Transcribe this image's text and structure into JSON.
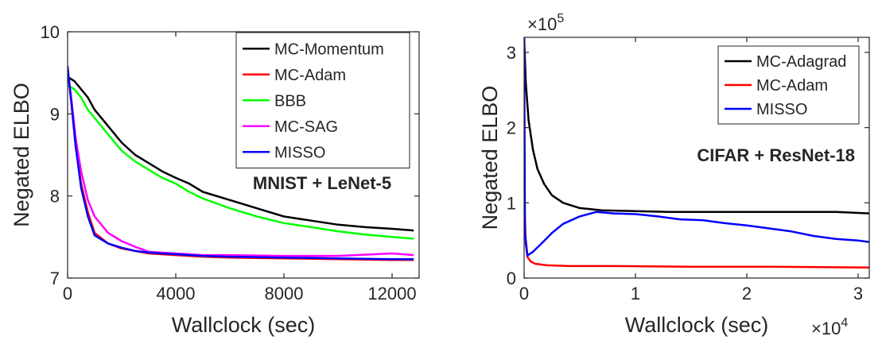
{
  "chart_data": [
    {
      "type": "line",
      "annotation": "MNIST + LeNet-5",
      "xlabel": "Wallclock (sec)",
      "ylabel": "Negated ELBO",
      "xlim": [
        0,
        13000
      ],
      "ylim": [
        7,
        10
      ],
      "xticks": [
        0,
        4000,
        8000,
        12000
      ],
      "xtick_labels": [
        "0",
        "4000",
        "8000",
        "12000"
      ],
      "yticks": [
        7,
        8,
        9,
        10
      ],
      "ytick_labels": [
        "7",
        "8",
        "9",
        "10"
      ],
      "grid": false,
      "legend_position": "top-right",
      "series": [
        {
          "name": "MC-Momentum",
          "color": "#000000",
          "x": [
            0,
            250,
            500,
            750,
            1000,
            1500,
            2000,
            2500,
            3000,
            3500,
            4000,
            4500,
            5000,
            6000,
            7000,
            8000,
            9000,
            10000,
            11000,
            12000,
            12800
          ],
          "y": [
            9.45,
            9.4,
            9.3,
            9.2,
            9.05,
            8.85,
            8.65,
            8.5,
            8.4,
            8.3,
            8.22,
            8.15,
            8.05,
            7.95,
            7.85,
            7.75,
            7.7,
            7.65,
            7.62,
            7.6,
            7.58
          ]
        },
        {
          "name": "MC-Adam",
          "color": "#ff0000",
          "x": [
            0,
            150,
            300,
            500,
            750,
            1000,
            1500,
            2000,
            2500,
            3000,
            4000,
            5000,
            6000,
            8000,
            10000,
            12000,
            12800
          ],
          "y": [
            9.55,
            9.1,
            8.6,
            8.15,
            7.8,
            7.55,
            7.42,
            7.36,
            7.33,
            7.3,
            7.28,
            7.26,
            7.25,
            7.24,
            7.23,
            7.22,
            7.22
          ]
        },
        {
          "name": "BBB",
          "color": "#00ff00",
          "x": [
            0,
            250,
            500,
            750,
            1000,
            1500,
            2000,
            2500,
            3000,
            3500,
            4000,
            4500,
            5000,
            6000,
            7000,
            8000,
            9000,
            10000,
            11000,
            12000,
            12800
          ],
          "y": [
            9.35,
            9.3,
            9.2,
            9.05,
            8.95,
            8.75,
            8.55,
            8.42,
            8.32,
            8.22,
            8.15,
            8.05,
            7.97,
            7.85,
            7.75,
            7.67,
            7.62,
            7.57,
            7.53,
            7.5,
            7.48
          ]
        },
        {
          "name": "MC-SAG",
          "color": "#ff00ff",
          "x": [
            0,
            150,
            300,
            500,
            750,
            1000,
            1500,
            2000,
            2500,
            3000,
            4000,
            5000,
            6000,
            8000,
            10000,
            12000,
            12800
          ],
          "y": [
            9.55,
            9.15,
            8.7,
            8.3,
            7.95,
            7.75,
            7.55,
            7.45,
            7.38,
            7.32,
            7.3,
            7.28,
            7.28,
            7.27,
            7.27,
            7.3,
            7.28
          ]
        },
        {
          "name": "MISSO",
          "color": "#0000ff",
          "x": [
            0,
            150,
            300,
            500,
            750,
            1000,
            1500,
            2000,
            2500,
            3000,
            4000,
            5000,
            6000,
            8000,
            10000,
            12000,
            12800
          ],
          "y": [
            9.58,
            9.1,
            8.6,
            8.1,
            7.75,
            7.52,
            7.42,
            7.37,
            7.33,
            7.31,
            7.29,
            7.27,
            7.26,
            7.25,
            7.24,
            7.23,
            7.23
          ]
        }
      ]
    },
    {
      "type": "line",
      "annotation": "CIFAR + ResNet-18",
      "xlabel": "Wallclock (sec)",
      "ylabel": "Negated ELBO",
      "x_multiplier": "×10^4",
      "y_multiplier": "×10^5",
      "x_exponent_base": "×10",
      "x_exponent": "4",
      "y_exponent_base": "×10",
      "y_exponent": "5",
      "xlim": [
        0,
        31000
      ],
      "ylim": [
        0,
        320000
      ],
      "xticks": [
        0,
        10000,
        20000,
        30000
      ],
      "xtick_labels": [
        "0",
        "1",
        "2",
        "3"
      ],
      "yticks": [
        0,
        100000,
        200000,
        300000
      ],
      "ytick_labels": [
        "0",
        "1",
        "2",
        "3"
      ],
      "grid": false,
      "legend_position": "top-right",
      "series": [
        {
          "name": "MC-Adagrad",
          "color": "#000000",
          "x": [
            0,
            150,
            400,
            800,
            1200,
            1800,
            2500,
            3500,
            5000,
            7000,
            10000,
            13000,
            16000,
            20000,
            24000,
            28000,
            31000
          ],
          "y": [
            320000,
            260000,
            210000,
            170000,
            145000,
            125000,
            110000,
            100000,
            93000,
            90000,
            89000,
            88000,
            88000,
            88000,
            88000,
            88000,
            86000
          ]
        },
        {
          "name": "MC-Adam",
          "color": "#ff0000",
          "x": [
            0,
            50,
            150,
            300,
            600,
            1000,
            2000,
            4000,
            8000,
            15000,
            22000,
            31000
          ],
          "y": [
            300000,
            90000,
            45000,
            28000,
            22000,
            19000,
            17000,
            16000,
            16000,
            15000,
            15000,
            14000
          ]
        },
        {
          "name": "MISSO",
          "color": "#0000ff",
          "x": [
            0,
            80,
            300,
            800,
            1500,
            2500,
            3500,
            5000,
            6500,
            8000,
            10000,
            12000,
            14000,
            16000,
            18000,
            20000,
            22000,
            24000,
            26000,
            28000,
            30000,
            31000
          ],
          "y": [
            320000,
            60000,
            30000,
            35000,
            45000,
            60000,
            72000,
            82000,
            88000,
            86000,
            85000,
            82000,
            78000,
            77000,
            73000,
            70000,
            66000,
            62000,
            56000,
            52000,
            50000,
            48000
          ]
        }
      ]
    }
  ]
}
